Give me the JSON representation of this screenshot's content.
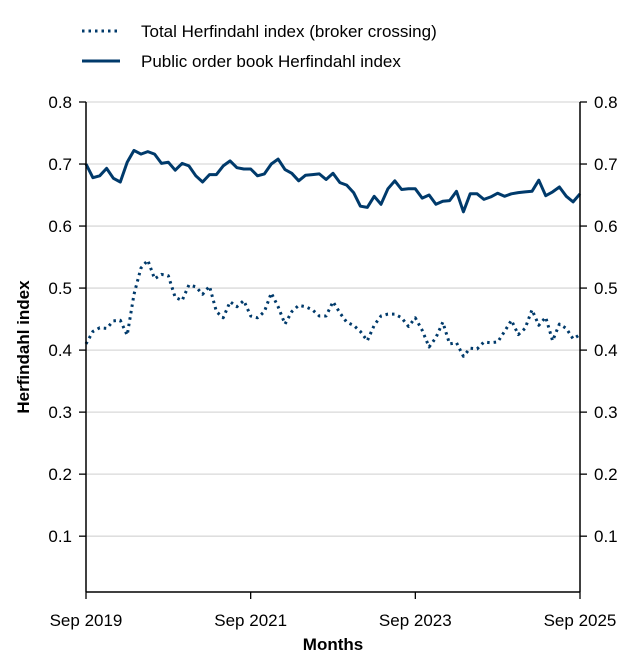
{
  "chart_data": {
    "type": "line",
    "title": "",
    "xlabel": "Months",
    "ylabel": "Herfindahl index",
    "x_start": "Sep 2019",
    "x_end": "Sep 2025",
    "x_frequency": "monthly",
    "xticks": [
      "Sep 2019",
      "Sep 2021",
      "Sep 2023",
      "Sep 2025"
    ],
    "yticks": [
      "0.1",
      "0.2",
      "0.3",
      "0.4",
      "0.5",
      "0.6",
      "0.7",
      "0.8"
    ],
    "ylim": [
      0.01,
      0.8
    ],
    "secondary_y_axis_mirrored": true,
    "grid": "horizontal",
    "legend_position": "top-left, outside plot",
    "series": [
      {
        "name": "Total Herfindahl index (broker crossing)",
        "style": "dotted",
        "color": "#003a6b",
        "values": [
          0.41,
          0.43,
          0.436,
          0.435,
          0.447,
          0.448,
          0.424,
          0.49,
          0.532,
          0.545,
          0.515,
          0.522,
          0.52,
          0.485,
          0.48,
          0.505,
          0.502,
          0.49,
          0.503,
          0.462,
          0.452,
          0.478,
          0.47,
          0.48,
          0.455,
          0.452,
          0.462,
          0.492,
          0.47,
          0.442,
          0.462,
          0.472,
          0.47,
          0.465,
          0.455,
          0.455,
          0.478,
          0.46,
          0.445,
          0.44,
          0.43,
          0.415,
          0.44,
          0.455,
          0.458,
          0.458,
          0.452,
          0.438,
          0.452,
          0.432,
          0.405,
          0.42,
          0.445,
          0.41,
          0.412,
          0.39,
          0.403,
          0.402,
          0.413,
          0.412,
          0.413,
          0.43,
          0.448,
          0.425,
          0.435,
          0.465,
          0.44,
          0.453,
          0.415,
          0.442,
          0.435,
          0.418,
          0.425
        ]
      },
      {
        "name": "Public order book Herfindahl index",
        "style": "solid",
        "color": "#003a6b",
        "values": [
          0.7,
          0.678,
          0.681,
          0.693,
          0.677,
          0.671,
          0.703,
          0.722,
          0.716,
          0.72,
          0.716,
          0.701,
          0.703,
          0.69,
          0.701,
          0.697,
          0.681,
          0.671,
          0.683,
          0.683,
          0.697,
          0.705,
          0.694,
          0.692,
          0.692,
          0.681,
          0.684,
          0.7,
          0.708,
          0.691,
          0.685,
          0.673,
          0.682,
          0.683,
          0.684,
          0.675,
          0.685,
          0.67,
          0.666,
          0.654,
          0.632,
          0.63,
          0.648,
          0.635,
          0.66,
          0.673,
          0.659,
          0.66,
          0.66,
          0.645,
          0.65,
          0.635,
          0.64,
          0.641,
          0.656,
          0.623,
          0.652,
          0.652,
          0.643,
          0.647,
          0.653,
          0.648,
          0.652,
          0.654,
          0.655,
          0.656,
          0.674,
          0.649,
          0.655,
          0.663,
          0.648,
          0.639,
          0.652
        ]
      }
    ]
  }
}
